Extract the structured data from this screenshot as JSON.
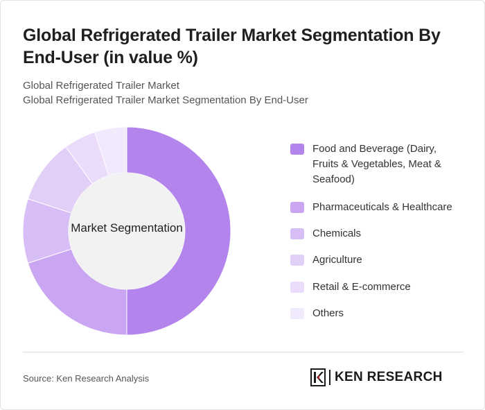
{
  "header": {
    "title": "Global Refrigerated Trailer Market Segmentation By End-User (in value %)",
    "subtitle_1": "Global Refrigerated Trailer Market",
    "subtitle_2": "Global Refrigerated Trailer Market Segmentation By End-User"
  },
  "chart_data": {
    "type": "pie",
    "variant": "donut",
    "center_label": "Market Segmentation",
    "categories": [
      "Food and Beverage (Dairy, Fruits & Vegetables, Meat & Seafood)",
      "Pharmaceuticals & Healthcare",
      "Chemicals",
      "Agriculture",
      "Retail & E-commerce",
      "Others"
    ],
    "values": [
      50,
      20,
      10,
      10,
      5,
      5
    ],
    "colors": [
      "#b384ec",
      "#c9a5f2",
      "#d8bef6",
      "#e2cff8",
      "#eadcfa",
      "#f1e9fc"
    ],
    "legend_position": "right"
  },
  "footer": {
    "source": "Source: Ken Research Analysis",
    "logo_text": "KEN RESEARCH"
  }
}
